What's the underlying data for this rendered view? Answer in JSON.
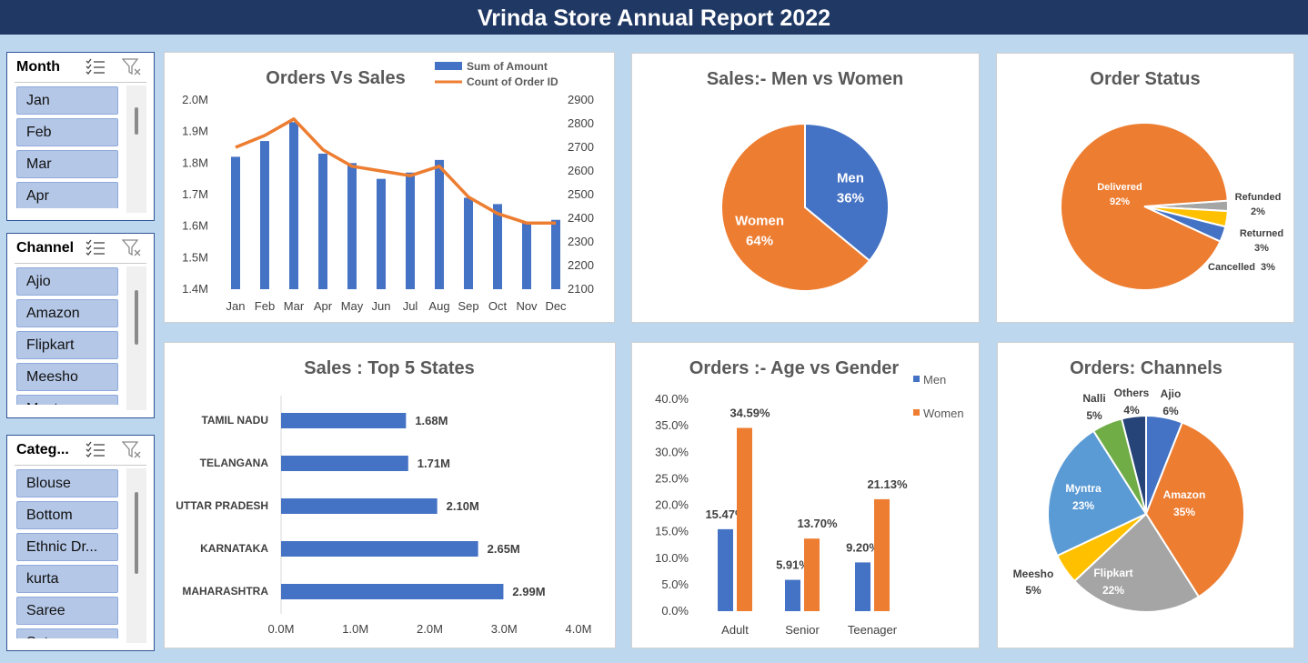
{
  "title": "Vrinda Store Annual Report 2022",
  "colors": {
    "blue": "#4472c4",
    "orange": "#ed7d31",
    "gray": "#a5a5a5",
    "yellow": "#ffc000",
    "lightblue": "#5b9bd5",
    "green": "#70ad47",
    "navy": "#264478",
    "banner": "#203864"
  },
  "slicers": [
    {
      "title": "Month",
      "items": [
        "Jan",
        "Feb",
        "Mar",
        "Apr"
      ]
    },
    {
      "title": "Channel",
      "items": [
        "Ajio",
        "Amazon",
        "Flipkart",
        "Meesho",
        "Myntra"
      ]
    },
    {
      "title": "Categ...",
      "items": [
        "Blouse",
        "Bottom",
        "Ethnic Dr...",
        "kurta",
        "Saree",
        "Set"
      ]
    }
  ],
  "slicer_icons": [
    "multi-select-icon",
    "clear-filter-icon"
  ],
  "chart_data": [
    {
      "type": "bar",
      "title": "Orders Vs Sales",
      "categories": [
        "Jan",
        "Feb",
        "Mar",
        "Apr",
        "May",
        "Jun",
        "Jul",
        "Aug",
        "Sep",
        "Oct",
        "Nov",
        "Dec"
      ],
      "series": [
        {
          "name": "Sum of Amount",
          "type": "bar",
          "axis": "left",
          "values": [
            1.82,
            1.87,
            1.93,
            1.83,
            1.8,
            1.75,
            1.77,
            1.81,
            1.69,
            1.67,
            1.61,
            1.62
          ]
        },
        {
          "name": "Count of Order ID",
          "type": "line",
          "axis": "right",
          "values": [
            2700,
            2750,
            2820,
            2690,
            2620,
            2600,
            2580,
            2620,
            2490,
            2420,
            2380,
            2380
          ]
        }
      ],
      "ylim_left": [
        1.4,
        2.0
      ],
      "ylim_right": [
        2100,
        2900
      ],
      "yticks_left": [
        "1.4M",
        "1.5M",
        "1.6M",
        "1.7M",
        "1.8M",
        "1.9M",
        "2.0M"
      ],
      "yticks_right": [
        "2100",
        "2200",
        "2300",
        "2400",
        "2500",
        "2600",
        "2700",
        "2800",
        "2900"
      ],
      "legend": "top-right",
      "grid": false
    },
    {
      "type": "pie",
      "title": "Sales:- Men vs Women",
      "labels": [
        "Men",
        "Women"
      ],
      "values": [
        36,
        64
      ],
      "value_labels": [
        "36%",
        "64%"
      ]
    },
    {
      "type": "pie",
      "title": "Order Status",
      "labels": [
        "Delivered",
        "Refunded",
        "Returned",
        "Cancelled"
      ],
      "values": [
        92,
        2,
        3,
        3
      ],
      "value_labels": [
        "92%",
        "2%",
        "3%",
        "3%"
      ]
    },
    {
      "type": "bar",
      "orientation": "horizontal",
      "title": "Sales : Top 5 States",
      "categories": [
        "TAMIL NADU",
        "TELANGANA",
        "UTTAR PRADESH",
        "KARNATAKA",
        "MAHARASHTRA"
      ],
      "values": [
        1.68,
        1.71,
        2.1,
        2.65,
        2.99
      ],
      "value_labels": [
        "1.68M",
        "1.71M",
        "2.10M",
        "2.65M",
        "2.99M"
      ],
      "xlim": [
        0,
        4
      ],
      "xticks": [
        "0.0M",
        "1.0M",
        "2.0M",
        "3.0M",
        "4.0M"
      ],
      "grid": false
    },
    {
      "type": "bar",
      "title": "Orders :- Age vs Gender",
      "categories": [
        "Adult",
        "Senior",
        "Teenager"
      ],
      "series": [
        {
          "name": "Men",
          "values": [
            15.47,
            5.91,
            9.2
          ],
          "value_labels": [
            "15.47%",
            "5.91%",
            "9.20%"
          ]
        },
        {
          "name": "Women",
          "values": [
            34.59,
            13.7,
            21.13
          ],
          "value_labels": [
            "34.59%",
            "13.70%",
            "21.13%"
          ]
        }
      ],
      "ylim": [
        0,
        40
      ],
      "yticks": [
        "0.0%",
        "5.0%",
        "10.0%",
        "15.0%",
        "20.0%",
        "25.0%",
        "30.0%",
        "35.0%",
        "40.0%"
      ],
      "legend": "top-right",
      "grid": false
    },
    {
      "type": "pie",
      "title": "Orders: Channels",
      "labels": [
        "Ajio",
        "Amazon",
        "Flipkart",
        "Meesho",
        "Myntra",
        "Nalli",
        "Others"
      ],
      "values": [
        6,
        35,
        22,
        5,
        23,
        5,
        4
      ],
      "value_labels": [
        "6%",
        "35%",
        "22%",
        "5%",
        "23%",
        "5%",
        "4%"
      ]
    }
  ]
}
